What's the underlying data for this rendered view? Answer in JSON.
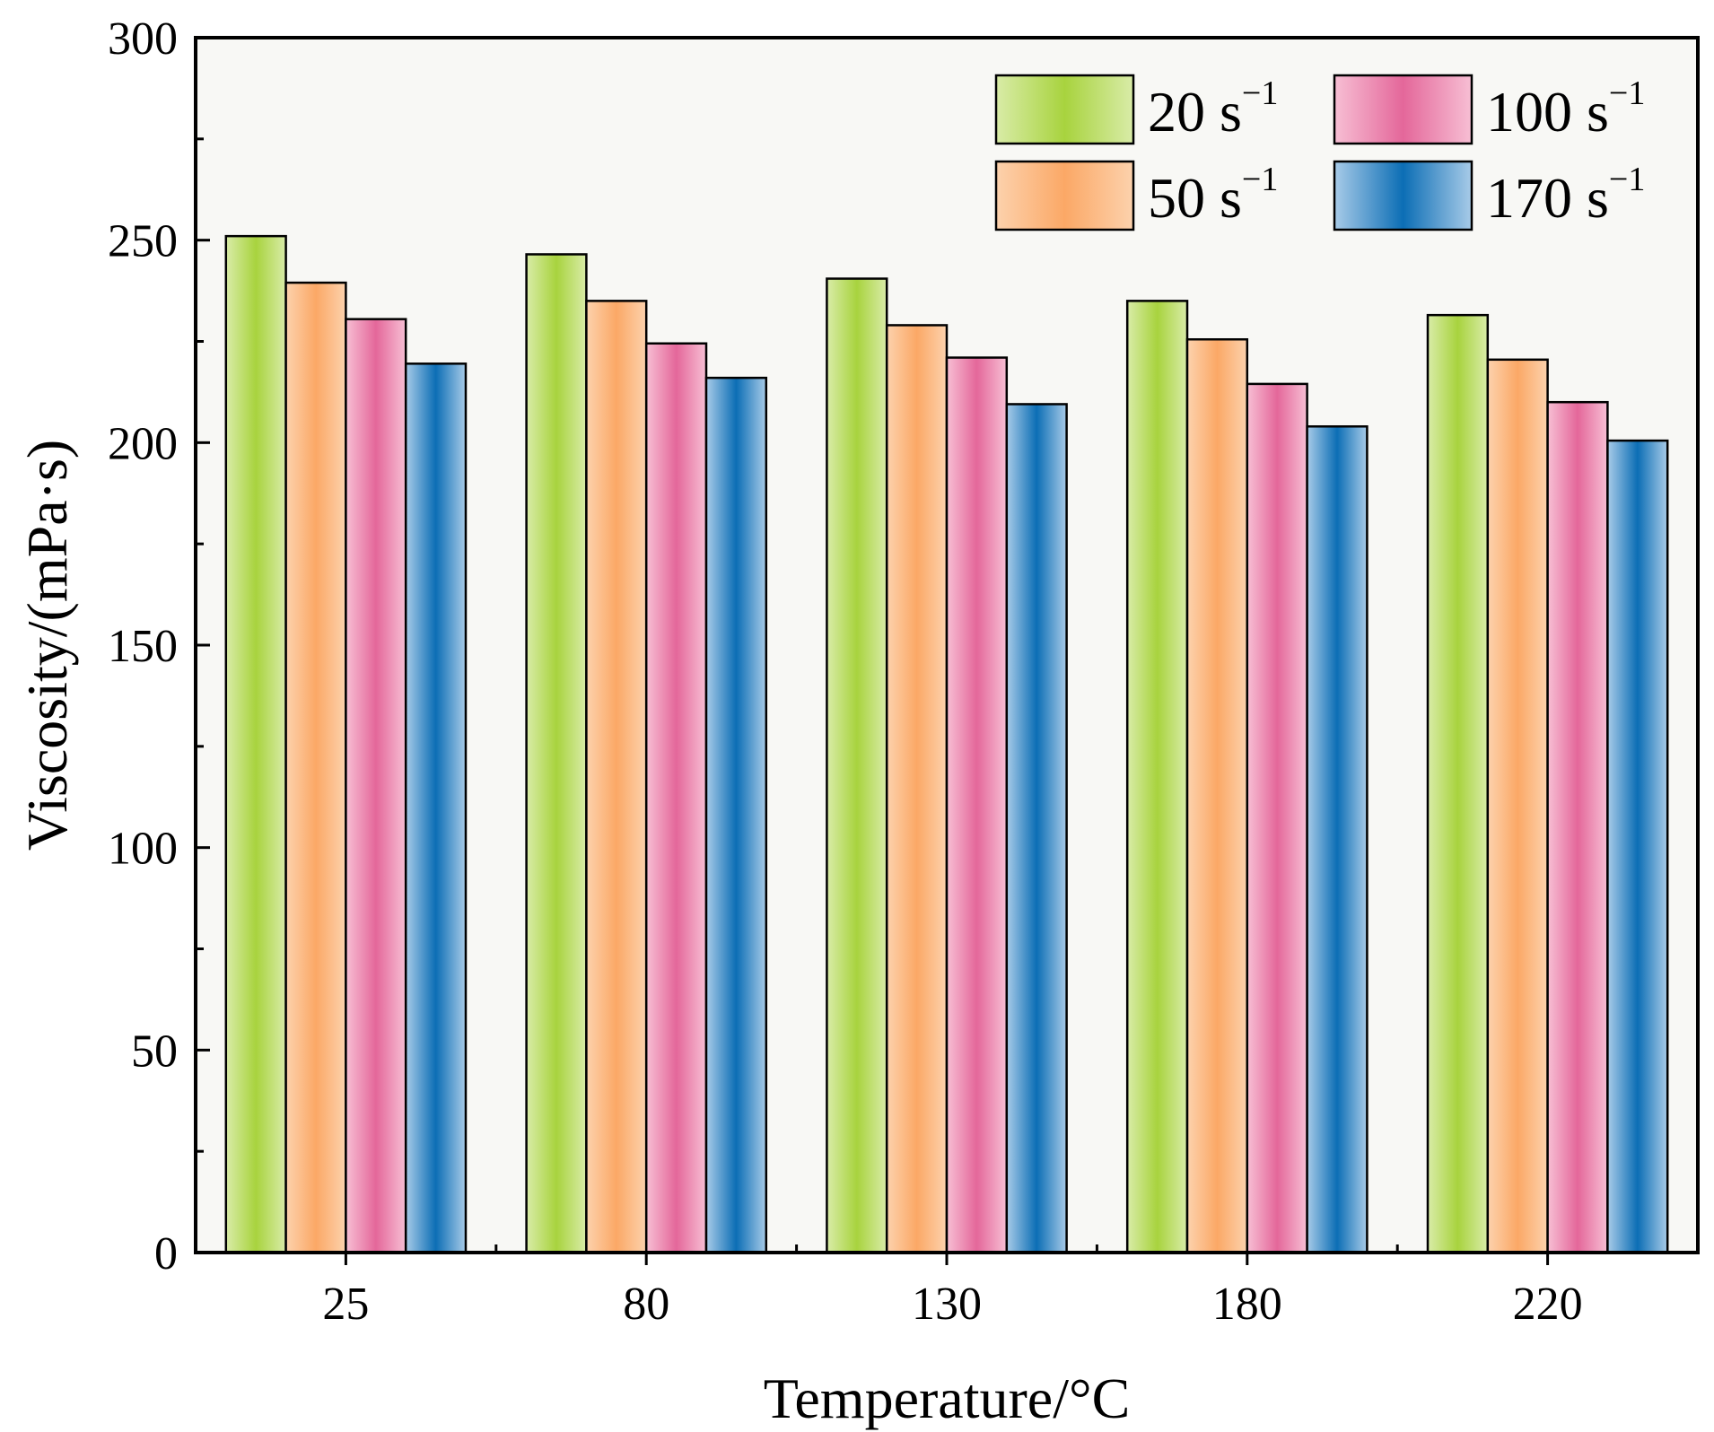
{
  "chart_data": {
    "type": "bar",
    "title": "",
    "xlabel": "Temperature/°C",
    "ylabel": "Viscosity/(mPa·s)",
    "categories": [
      "25",
      "80",
      "130",
      "180",
      "220"
    ],
    "ylim": [
      0,
      300
    ],
    "yticks": [
      0,
      50,
      100,
      150,
      200,
      250,
      300
    ],
    "legend_position": "top-right",
    "series": [
      {
        "name": "20 s",
        "exponent": "−1",
        "values": [
          251,
          246.5,
          240.5,
          235,
          231.5
        ],
        "colors": {
          "edge": "#d9eca8",
          "mid": "#a8d33e"
        }
      },
      {
        "name": "50 s",
        "exponent": "−1",
        "values": [
          239.5,
          235,
          229,
          225.5,
          220.5
        ],
        "colors": {
          "edge": "#fcd2ad",
          "mid": "#fba866"
        }
      },
      {
        "name": "100 s",
        "exponent": "−1",
        "values": [
          230.5,
          224.5,
          221,
          214.5,
          210
        ],
        "colors": {
          "edge": "#f7bfd4",
          "mid": "#e4679a"
        }
      },
      {
        "name": "170 s",
        "exponent": "−1",
        "values": [
          219.5,
          216,
          209.5,
          204,
          200.5
        ],
        "colors": {
          "edge": "#a8cbe8",
          "mid": "#0c6eb5"
        }
      }
    ]
  }
}
